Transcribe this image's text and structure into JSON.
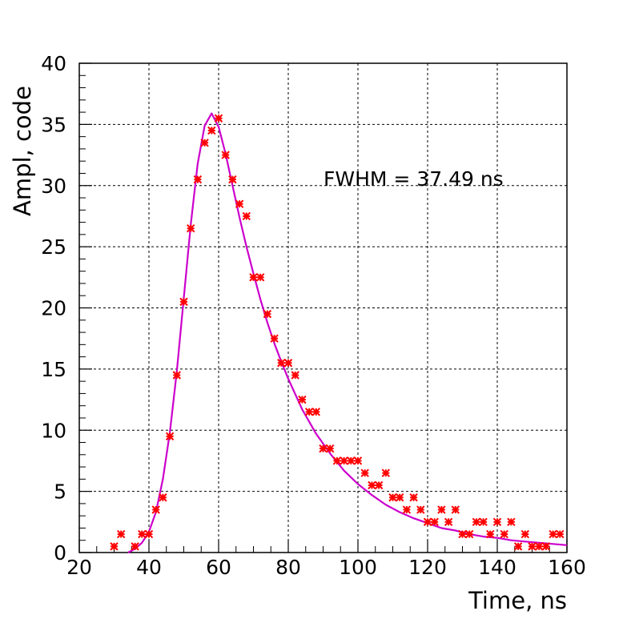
{
  "chart_data": {
    "type": "scatter",
    "xlabel": "Time, ns",
    "ylabel": "Ampl, code",
    "xlim": [
      20,
      160
    ],
    "ylim": [
      0,
      40
    ],
    "xticks": [
      20,
      40,
      60,
      80,
      100,
      120,
      140,
      160
    ],
    "yticks": [
      0,
      5,
      10,
      15,
      20,
      25,
      30,
      35,
      40
    ],
    "grid": true,
    "annotation": "FWHM = 37.49 ns",
    "colors": {
      "points": "#ff0000",
      "fit": "#cc00cc",
      "grid": "#000000"
    },
    "points": {
      "x": [
        30,
        32,
        36,
        38,
        40,
        42,
        44,
        46,
        48,
        50,
        52,
        54,
        56,
        58,
        60,
        62,
        64,
        66,
        68,
        70,
        72,
        74,
        76,
        78,
        80,
        82,
        84,
        86,
        88,
        90,
        92,
        94,
        96,
        98,
        100,
        102,
        104,
        106,
        108,
        110,
        112,
        114,
        116,
        118,
        120,
        122,
        124,
        126,
        128,
        130,
        132,
        134,
        136,
        138,
        140,
        142,
        144,
        146,
        148,
        150,
        152,
        154,
        156,
        158
      ],
      "y": [
        0.5,
        1.5,
        0.5,
        1.5,
        1.5,
        3.5,
        4.5,
        9.5,
        14.5,
        20.5,
        26.5,
        30.5,
        33.5,
        34.5,
        35.5,
        32.5,
        30.5,
        28.5,
        27.5,
        22.5,
        22.5,
        19.5,
        17.5,
        15.5,
        15.5,
        14.5,
        12.5,
        11.5,
        11.5,
        8.5,
        8.5,
        7.5,
        7.5,
        7.5,
        7.5,
        6.5,
        5.5,
        5.5,
        6.5,
        4.5,
        4.5,
        3.5,
        4.5,
        3.5,
        2.5,
        2.5,
        3.5,
        2.5,
        3.5,
        1.5,
        1.5,
        2.5,
        2.5,
        1.5,
        2.5,
        1.5,
        2.5,
        0.5,
        1.5,
        0.5,
        0.5,
        0.5,
        1.5,
        1.5
      ]
    },
    "fit": {
      "x": [
        34,
        36,
        38,
        40,
        42,
        44,
        46,
        48,
        50,
        52,
        54,
        56,
        58,
        60,
        62,
        64,
        66,
        68,
        70,
        72,
        74,
        76,
        78,
        80,
        84,
        88,
        92,
        96,
        100,
        104,
        108,
        112,
        116,
        120,
        124,
        128,
        132,
        136,
        140,
        144,
        148,
        152,
        156,
        160
      ],
      "y": [
        0.0,
        0.3,
        0.8,
        1.7,
        3.3,
        6.0,
        9.8,
        14.8,
        20.8,
        26.8,
        31.8,
        34.9,
        35.9,
        34.8,
        32.6,
        30.0,
        27.4,
        25.0,
        22.8,
        20.7,
        18.8,
        17.1,
        15.6,
        14.2,
        11.7,
        9.7,
        8.1,
        6.7,
        5.6,
        4.7,
        3.9,
        3.3,
        2.8,
        2.4,
        2.0,
        1.8,
        1.5,
        1.3,
        1.2,
        1.0,
        0.9,
        0.8,
        0.7,
        0.6
      ]
    }
  }
}
